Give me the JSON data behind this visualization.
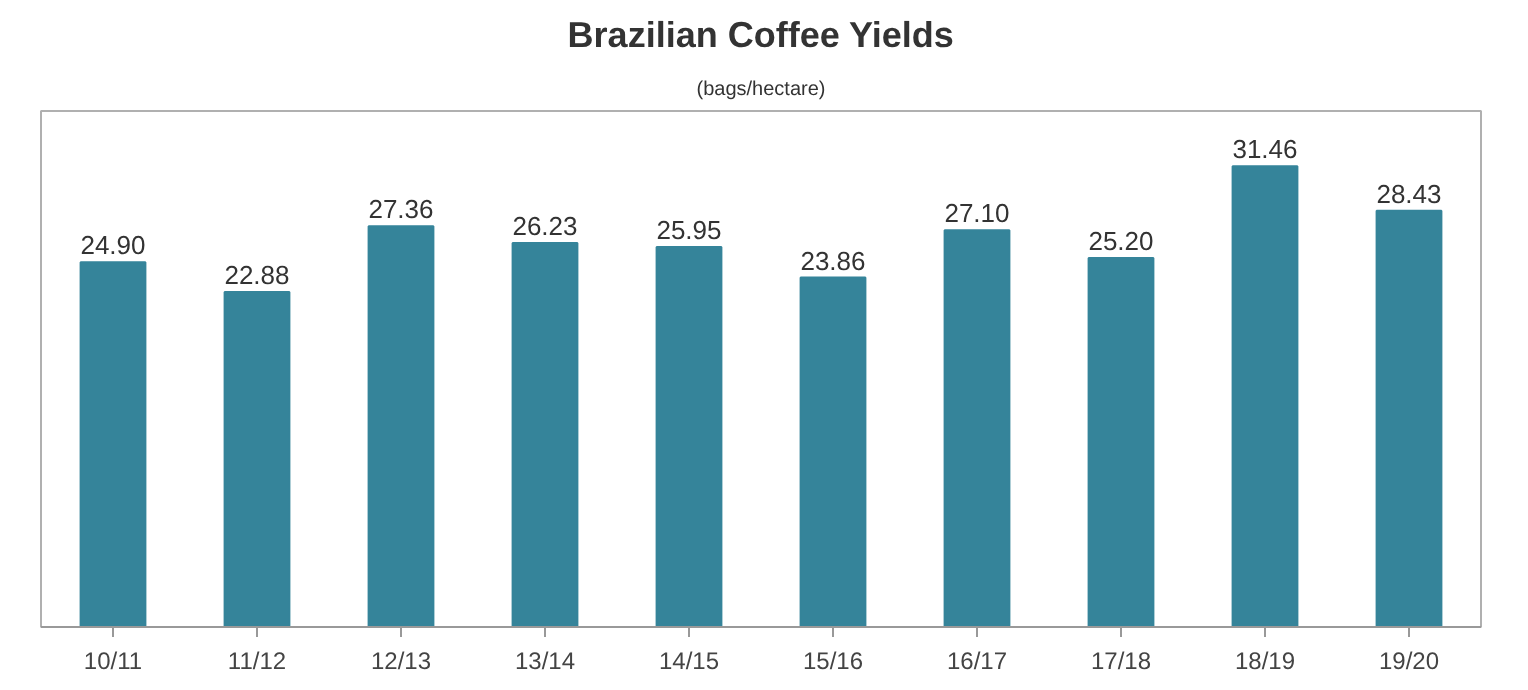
{
  "chart_data": {
    "type": "bar",
    "title": "Brazilian Coffee Yields",
    "subtitle": "(bags/hectare)",
    "categories": [
      "10/11",
      "11/12",
      "12/13",
      "13/14",
      "14/15",
      "15/16",
      "16/17",
      "17/18",
      "18/19",
      "19/20"
    ],
    "values": [
      24.9,
      22.88,
      27.36,
      26.23,
      25.95,
      23.86,
      27.1,
      25.2,
      31.46,
      28.43
    ],
    "value_labels": [
      "24.90",
      "22.88",
      "27.36",
      "26.23",
      "25.95",
      "23.86",
      "27.10",
      "25.20",
      "31.46",
      "28.43"
    ],
    "color": "#35849a",
    "grid": false
  }
}
